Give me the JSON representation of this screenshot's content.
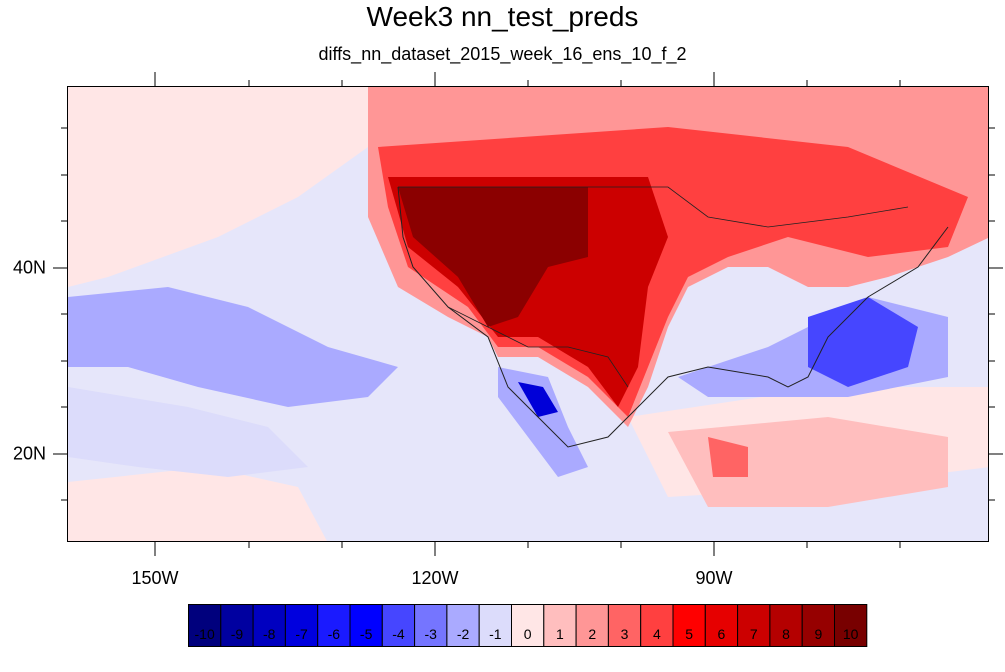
{
  "title": "Week3 nn_test_preds",
  "subtitle": "diffs_nn_dataset_2015_week_16_ens_10_f_2",
  "lon_labels": [
    "150W",
    "120W",
    "90W"
  ],
  "lat_labels": [
    "40N",
    "20N"
  ],
  "colorbar": {
    "labels": [
      "-10",
      "-9",
      "-8",
      "-7",
      "-6",
      "-5",
      "-4",
      "-3",
      "-2",
      "-1",
      "0",
      "1",
      "2",
      "3",
      "4",
      "5",
      "6",
      "7",
      "8",
      "9",
      "10"
    ],
    "colors": [
      "#00007d",
      "#0000a0",
      "#0000c0",
      "#0000de",
      "#1a1aff",
      "#0000ff",
      "#4646ff",
      "#7575ff",
      "#aaaaff",
      "#dcdcfb",
      "#ffe6e6",
      "#ffbebe",
      "#ff9696",
      "#ff6464",
      "#ff4040",
      "#ff0000",
      "#e60000",
      "#cc0000",
      "#b40000",
      "#960000",
      "#780000"
    ]
  },
  "map": {
    "background": "#e6e6fa",
    "land_hot": "#c80000",
    "land_hottest": "#8b0000",
    "cool": "#aaaaff",
    "coolest": "#0000d8"
  }
}
